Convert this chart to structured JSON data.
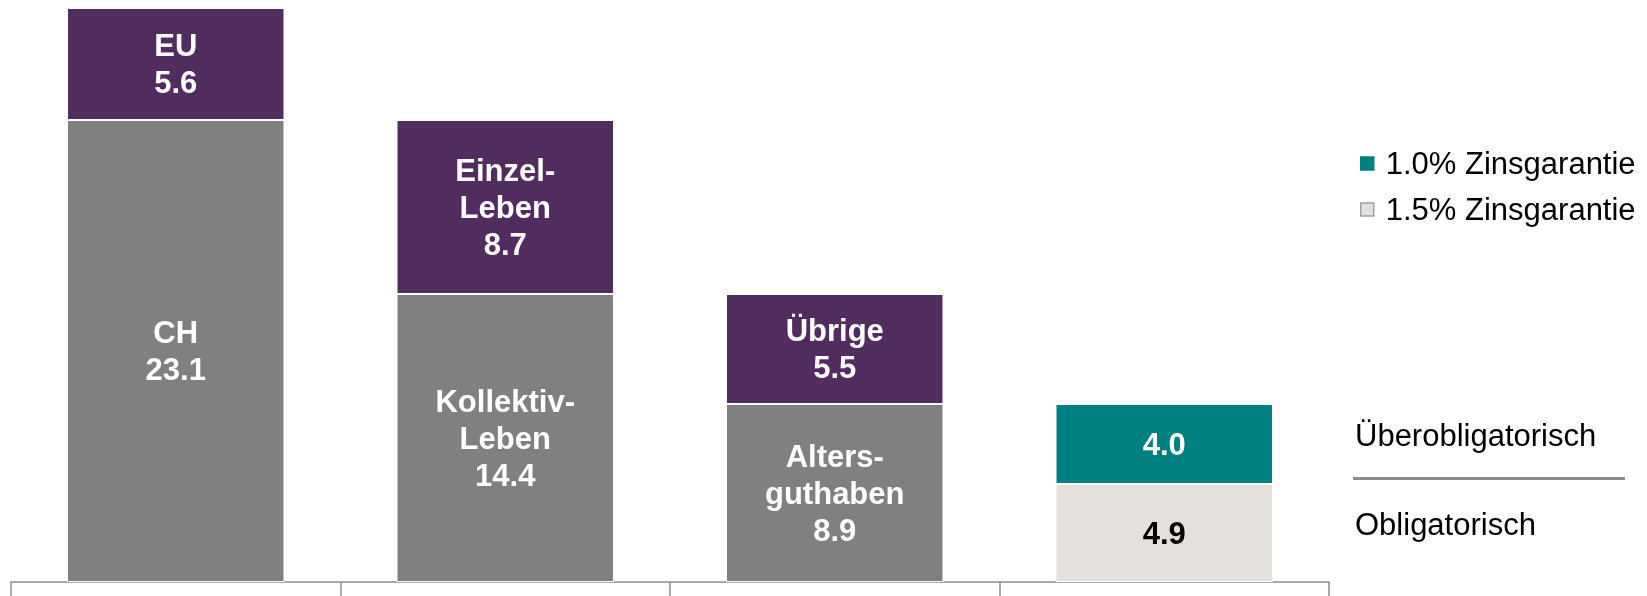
{
  "chart_data": {
    "type": "bar",
    "stacked": true,
    "categories": [
      null,
      null,
      null,
      null
    ],
    "series": [
      {
        "color": "#808080",
        "values": [
          23.1,
          14.4,
          8.9,
          null
        ],
        "value_labels": [
          "CH\n23.1",
          "Kollektiv-\nLeben\n14.4",
          "Alters-\nguthaben\n8.9",
          null
        ]
      },
      {
        "name": "1.5% Zinsgarantie",
        "color": "#e3e0dd",
        "values": [
          null,
          null,
          null,
          4.9
        ],
        "value_labels": [
          null,
          null,
          null,
          "4.9"
        ]
      },
      {
        "color": "#512c5f",
        "values": [
          5.6,
          8.7,
          5.5,
          null
        ],
        "value_labels": [
          "EU\n5.6",
          "Einzel-\nLeben\n8.7",
          "Übrige\n5.5",
          null
        ]
      },
      {
        "name": "1.0% Zinsgarantie",
        "color": "#008080",
        "values": [
          null,
          null,
          null,
          4.0
        ],
        "value_labels": [
          null,
          null,
          null,
          "4.0"
        ]
      }
    ],
    "legend": "right",
    "grid": false,
    "annotations": [
      "Überobligatorisch",
      "Obligatorisch"
    ]
  }
}
